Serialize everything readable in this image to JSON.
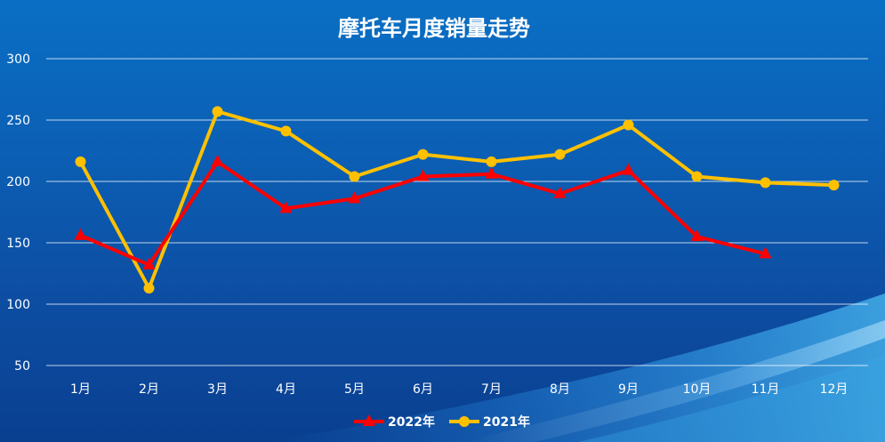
{
  "chart_data": {
    "type": "line",
    "title": "摩托车月度销量走势",
    "xlabel": "",
    "ylabel": "",
    "categories": [
      "1月",
      "2月",
      "3月",
      "4月",
      "5月",
      "6月",
      "7月",
      "8月",
      "9月",
      "10月",
      "11月",
      "12月"
    ],
    "ylim": [
      50,
      300
    ],
    "yticks": [
      50,
      100,
      150,
      200,
      250,
      300
    ],
    "grid": true,
    "legend_position": "bottom",
    "series": [
      {
        "name": "2022年",
        "color": "#ff0000",
        "marker": "triangle",
        "values": [
          156,
          132,
          216,
          178,
          186,
          204,
          206,
          190,
          209,
          155,
          141,
          null
        ]
      },
      {
        "name": "2021年",
        "color": "#ffc000",
        "marker": "circle",
        "values": [
          216,
          113,
          257,
          241,
          204,
          222,
          216,
          222,
          246,
          204,
          199,
          197
        ]
      }
    ]
  }
}
